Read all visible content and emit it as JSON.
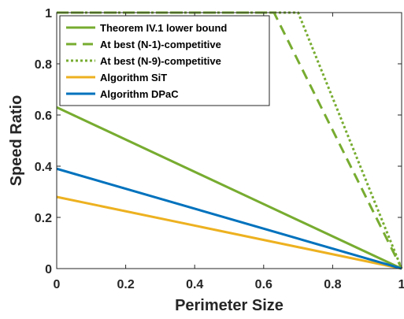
{
  "chart_data": {
    "type": "line",
    "xlabel": "Perimeter Size",
    "ylabel": "Speed Ratio",
    "xlim": [
      0,
      1
    ],
    "ylim": [
      0,
      1
    ],
    "x_ticks": [
      "0",
      "0.2",
      "0.4",
      "0.6",
      "0.8",
      "1"
    ],
    "y_ticks": [
      "0",
      "0.2",
      "0.4",
      "0.6",
      "0.8",
      "1"
    ],
    "grid": false,
    "legend_position": "top-left",
    "series": [
      {
        "name": "Theorem IV.1 lower bound",
        "color": "#77ac30",
        "style": "solid",
        "x": [
          0,
          1
        ],
        "y": [
          0.63,
          0
        ]
      },
      {
        "name": "At best (N-1)-competitive",
        "color": "#77ac30",
        "style": "dashed",
        "x": [
          0,
          0.63,
          1
        ],
        "y": [
          1,
          1,
          0
        ]
      },
      {
        "name": "At best (N-9)-competitive",
        "color": "#77ac30",
        "style": "dotted",
        "x": [
          0,
          0.7,
          1
        ],
        "y": [
          1,
          1,
          0
        ]
      },
      {
        "name": "Algorithm SiT",
        "color": "#edb120",
        "style": "solid",
        "x": [
          0,
          1
        ],
        "y": [
          0.28,
          0
        ]
      },
      {
        "name": "Algorithm DPaC",
        "color": "#0072bd",
        "style": "solid",
        "x": [
          0,
          1
        ],
        "y": [
          0.39,
          0
        ]
      }
    ]
  }
}
